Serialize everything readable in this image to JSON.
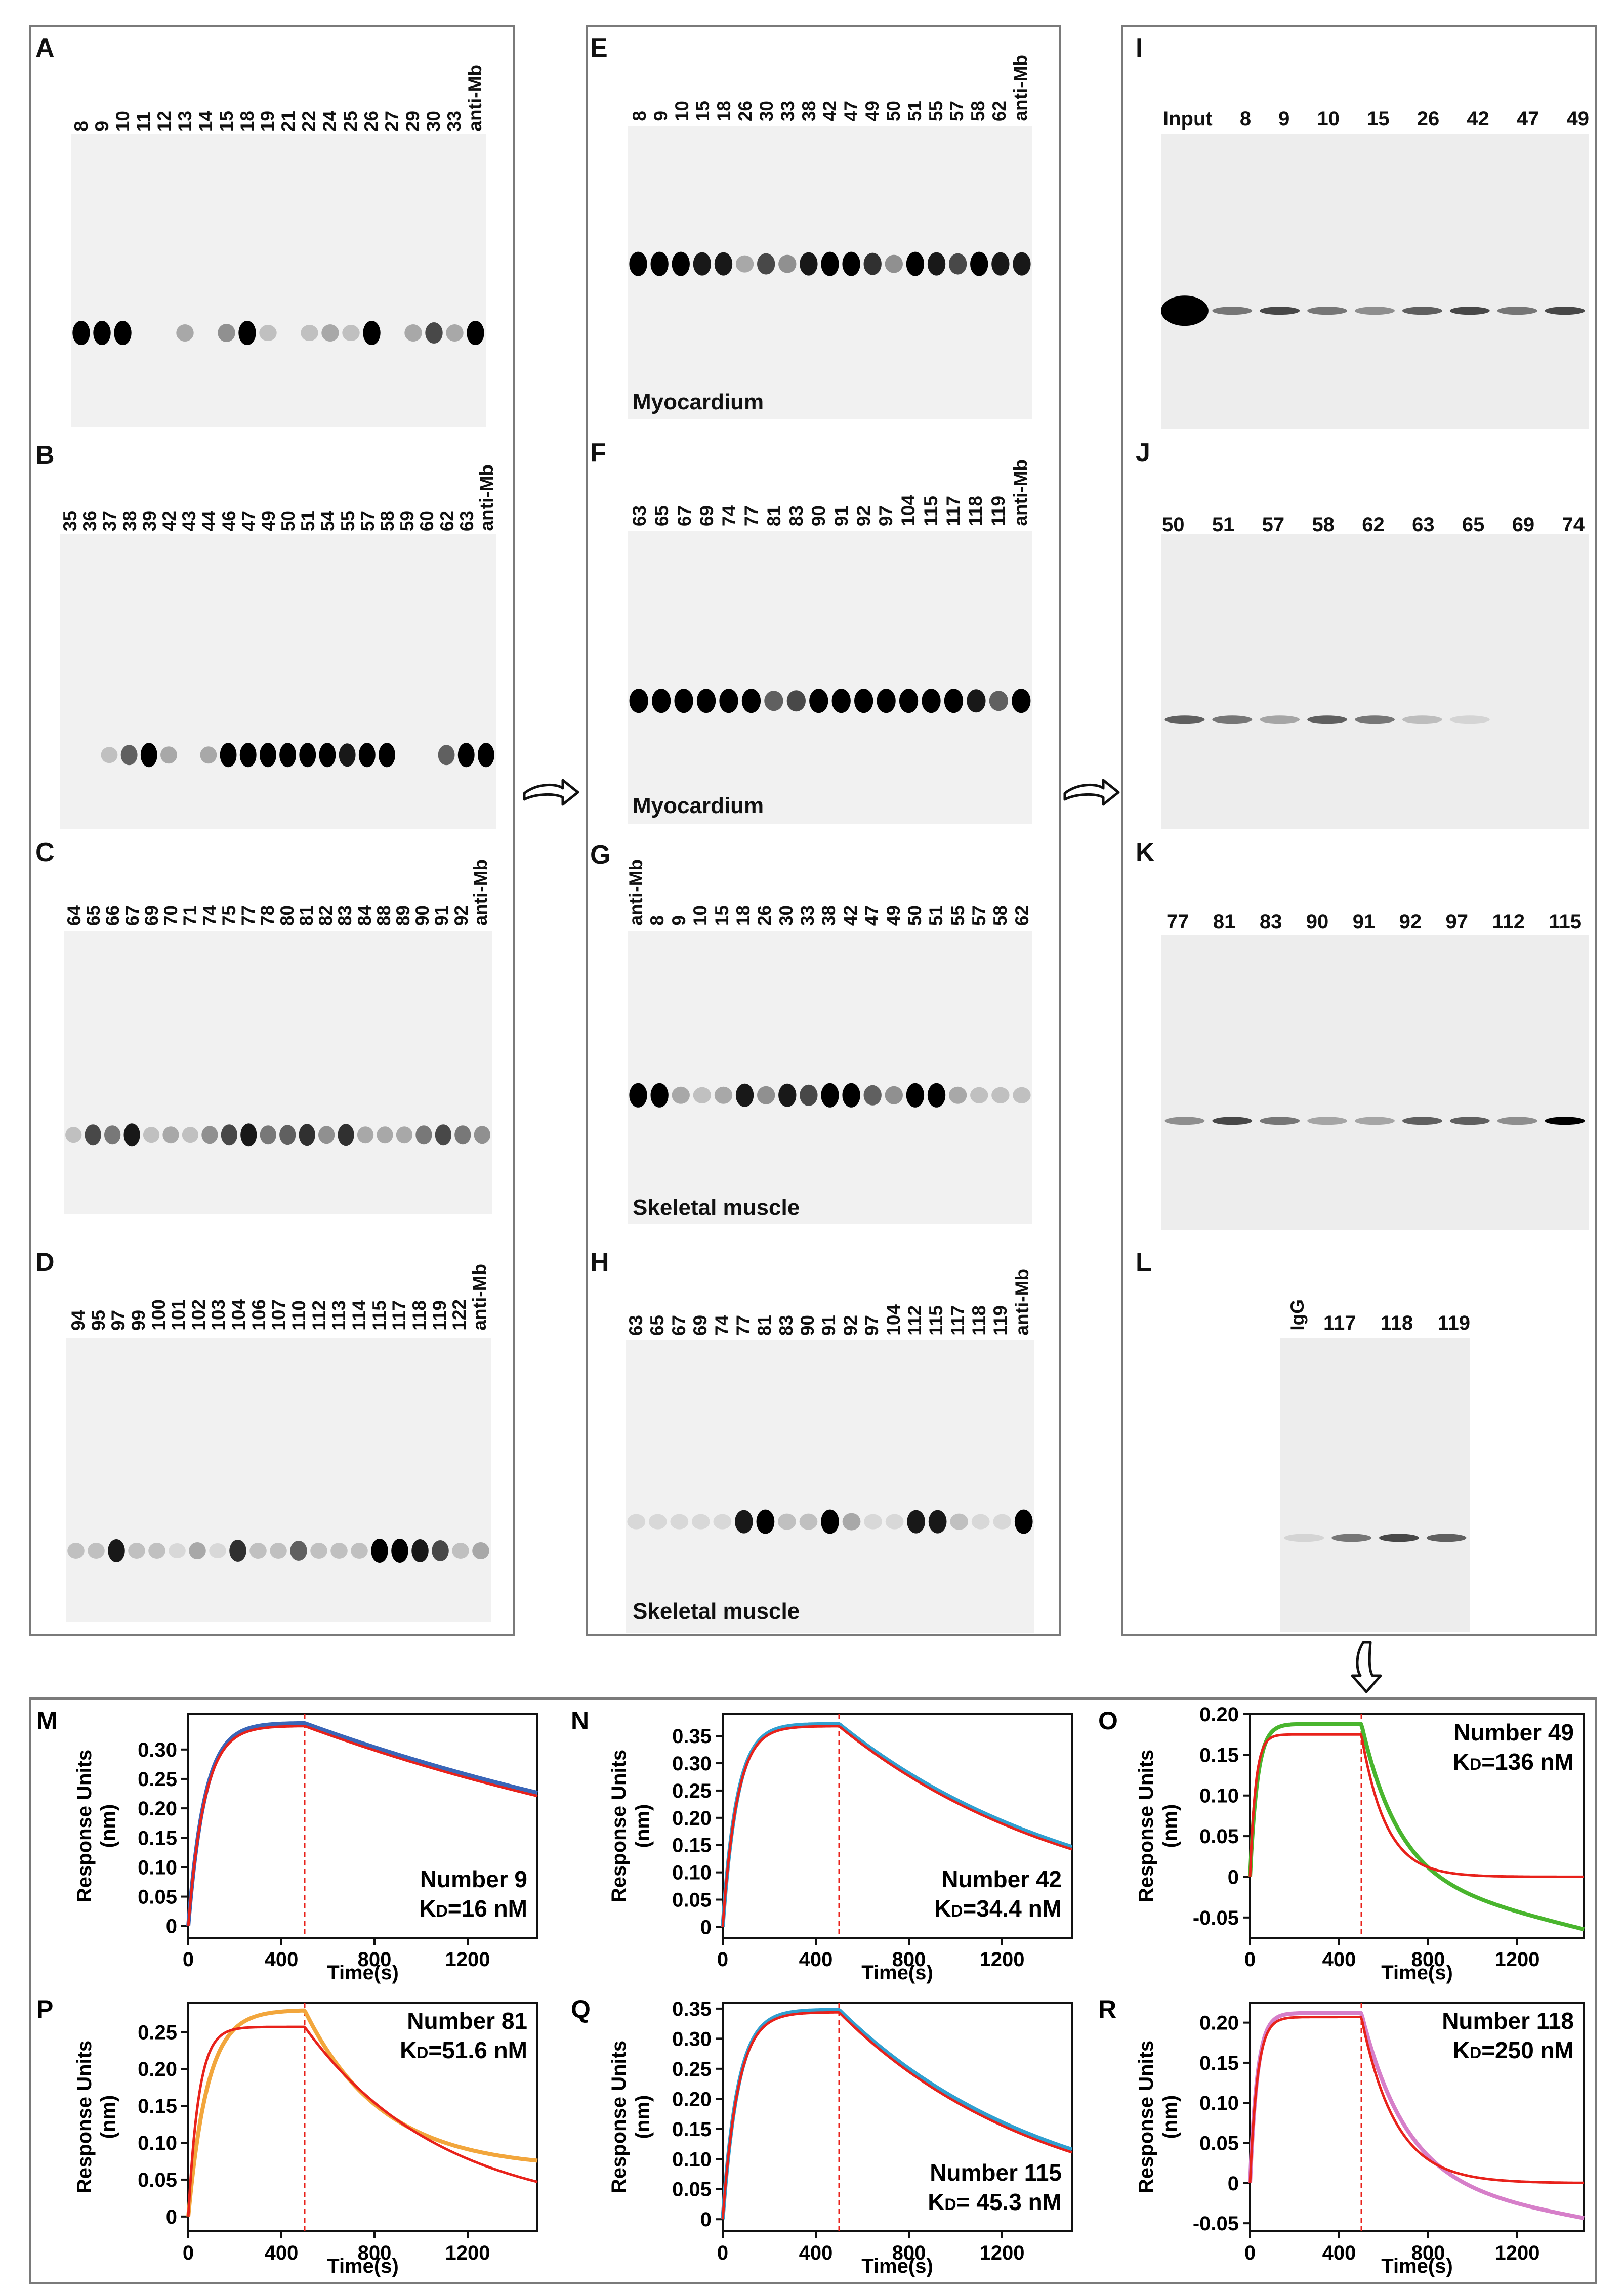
{
  "panels": {
    "A": {
      "label": "A",
      "lanes": [
        "8",
        "9",
        "10",
        "11",
        "12",
        "13",
        "14",
        "15",
        "18",
        "19",
        "21",
        "22",
        "24",
        "25",
        "26",
        "27",
        "29",
        "30",
        "33",
        "anti-Mb"
      ]
    },
    "B": {
      "label": "B",
      "lanes": [
        "35",
        "36",
        "37",
        "38",
        "39",
        "42",
        "43",
        "44",
        "46",
        "47",
        "49",
        "50",
        "51",
        "54",
        "55",
        "57",
        "58",
        "59",
        "60",
        "62",
        "63",
        "anti-Mb"
      ]
    },
    "C": {
      "label": "C",
      "lanes": [
        "64",
        "65",
        "66",
        "67",
        "69",
        "70",
        "71",
        "74",
        "75",
        "77",
        "78",
        "80",
        "81",
        "82",
        "83",
        "84",
        "88",
        "89",
        "90",
        "91",
        "92",
        "anti-Mb"
      ]
    },
    "D": {
      "label": "D",
      "lanes": [
        "94",
        "95",
        "97",
        "99",
        "100",
        "101",
        "102",
        "103",
        "104",
        "106",
        "107",
        "110",
        "112",
        "113",
        "114",
        "115",
        "117",
        "118",
        "119",
        "122",
        "anti-Mb"
      ]
    },
    "E": {
      "label": "E",
      "lanes": [
        "8",
        "9",
        "10",
        "15",
        "18",
        "26",
        "30",
        "33",
        "38",
        "42",
        "47",
        "49",
        "50",
        "51",
        "55",
        "57",
        "58",
        "62",
        "anti-Mb"
      ],
      "tissue": "Myocardium"
    },
    "F": {
      "label": "F",
      "lanes": [
        "63",
        "65",
        "67",
        "69",
        "74",
        "77",
        "81",
        "83",
        "90",
        "91",
        "92",
        "97",
        "104",
        "115",
        "117",
        "118",
        "119",
        "anti-Mb"
      ],
      "tissue": "Myocardium"
    },
    "G": {
      "label": "G",
      "lanes": [
        "anti-Mb",
        "8",
        "9",
        "10",
        "15",
        "18",
        "26",
        "30",
        "33",
        "38",
        "42",
        "47",
        "49",
        "50",
        "51",
        "55",
        "57",
        "58",
        "62"
      ],
      "tissue": "Skeletal muscle"
    },
    "H": {
      "label": "H",
      "lanes": [
        "63",
        "65",
        "67",
        "69",
        "74",
        "77",
        "81",
        "83",
        "90",
        "91",
        "92",
        "97",
        "104",
        "112",
        "115",
        "117",
        "118",
        "119",
        "anti-Mb"
      ],
      "tissue": "Skeletal muscle"
    },
    "I": {
      "label": "I",
      "lanes": [
        "Input",
        "8",
        "9",
        "10",
        "15",
        "26",
        "42",
        "47",
        "49"
      ]
    },
    "J": {
      "label": "J",
      "lanes": [
        "50",
        "51",
        "57",
        "58",
        "62",
        "63",
        "65",
        "69",
        "74"
      ]
    },
    "K": {
      "label": "K",
      "lanes": [
        "77",
        "81",
        "83",
        "90",
        "91",
        "92",
        "97",
        "112",
        "115"
      ]
    },
    "L": {
      "label": "L",
      "rot_lane": "IgG",
      "lanes": [
        "117",
        "118",
        "119"
      ]
    }
  },
  "charts_text": {
    "ylabel_line1": "Response Units",
    "ylabel_line2": "(nm)",
    "xlabel": "Time(s)"
  },
  "chart_data": [
    {
      "id": "M",
      "type": "line",
      "label": "M",
      "title": "Number 9",
      "kd": "KD=16 nM",
      "kd_prefix": "K",
      "kd_sub": "D",
      "kd_value": "=16 nM",
      "xlim": [
        0,
        1500
      ],
      "ylim": [
        -0.02,
        0.36
      ],
      "xticks": [
        0,
        400,
        800,
        1200
      ],
      "yticks": [
        0,
        0.05,
        0.1,
        0.15,
        0.2,
        0.25,
        0.3
      ],
      "ytick_labels": [
        "0",
        "0.05",
        "0.10",
        "0.15",
        "0.20",
        "0.25",
        "0.30"
      ],
      "dissociation_start": 500,
      "series": [
        {
          "name": "data",
          "color": "#3a66b8",
          "assoc_max": 0.345,
          "kon": 0.014,
          "koff": 0.00042
        },
        {
          "name": "fit",
          "color": "#e8221b",
          "assoc_max": 0.34,
          "kon": 0.014,
          "koff": 0.00043
        }
      ]
    },
    {
      "id": "N",
      "type": "line",
      "label": "N",
      "title": "Number 42",
      "kd": "KD=34.4 nM",
      "kd_prefix": "K",
      "kd_sub": "D",
      "kd_value": "=34.4 nM",
      "xlim": [
        0,
        1500
      ],
      "ylim": [
        -0.02,
        0.39
      ],
      "xticks": [
        0,
        400,
        800,
        1200
      ],
      "yticks": [
        0,
        0.05,
        0.1,
        0.15,
        0.2,
        0.25,
        0.3,
        0.35
      ],
      "ytick_labels": [
        "0",
        "0.05",
        "0.10",
        "0.15",
        "0.20",
        "0.25",
        "0.30",
        "0.35"
      ],
      "dissociation_start": 500,
      "series": [
        {
          "name": "data",
          "color": "#2f9fd0",
          "assoc_max": 0.372,
          "kon": 0.016,
          "koff": 0.00093
        },
        {
          "name": "fit",
          "color": "#e8221b",
          "assoc_max": 0.368,
          "kon": 0.016,
          "koff": 0.00095
        }
      ]
    },
    {
      "id": "O",
      "type": "line",
      "label": "O",
      "title": "Number 49",
      "kd": "KD=136 nM",
      "kd_prefix": "K",
      "kd_sub": "D",
      "kd_value": "=136 nM",
      "xlim": [
        0,
        1500
      ],
      "ylim": [
        -0.075,
        0.2
      ],
      "xticks": [
        0,
        400,
        800,
        1200
      ],
      "yticks": [
        -0.05,
        0,
        0.05,
        0.1,
        0.15,
        0.2
      ],
      "ytick_labels": [
        "-0.05",
        "0",
        "0.05",
        "0.10",
        "0.15",
        "0.20"
      ],
      "dissociation_start": 500,
      "series": [
        {
          "name": "data",
          "color": "#49b52e",
          "assoc_max": 0.188,
          "kon": 0.03,
          "koff": 0.006,
          "drift": -0.065
        },
        {
          "name": "fit",
          "color": "#e8221b",
          "assoc_max": 0.175,
          "kon": 0.04,
          "koff": 0.009
        }
      ]
    },
    {
      "id": "P",
      "type": "line",
      "label": "P",
      "title": "Number 81",
      "kd": "KD=51.6 nM",
      "kd_prefix": "K",
      "kd_sub": "D",
      "kd_value": "=51.6 nM",
      "xlim": [
        0,
        1500
      ],
      "ylim": [
        -0.02,
        0.29
      ],
      "xticks": [
        0,
        400,
        800,
        1200
      ],
      "yticks": [
        0,
        0.05,
        0.1,
        0.15,
        0.2,
        0.25
      ],
      "ytick_labels": [
        "0",
        "0.05",
        "0.10",
        "0.15",
        "0.20",
        "0.25"
      ],
      "dissociation_start": 500,
      "series": [
        {
          "name": "data",
          "color": "#f2a63c",
          "assoc_max": 0.28,
          "kon": 0.012,
          "koff": 0.003,
          "floor": 0.065
        },
        {
          "name": "fit",
          "color": "#e8221b",
          "assoc_max": 0.257,
          "kon": 0.022,
          "koff": 0.0017
        }
      ]
    },
    {
      "id": "Q",
      "type": "line",
      "label": "Q",
      "title": "Number 115",
      "kd": "KD= 45.3 nM",
      "kd_prefix": "K",
      "kd_sub": "D",
      "kd_value": "= 45.3 nM",
      "xlim": [
        0,
        1500
      ],
      "ylim": [
        -0.02,
        0.36
      ],
      "xticks": [
        0,
        400,
        800,
        1200
      ],
      "yticks": [
        0,
        0.05,
        0.1,
        0.15,
        0.2,
        0.25,
        0.3,
        0.35
      ],
      "ytick_labels": [
        "0",
        "0.05",
        "0.10",
        "0.15",
        "0.20",
        "0.25",
        "0.30",
        "0.35"
      ],
      "dissociation_start": 500,
      "series": [
        {
          "name": "data",
          "color": "#2f9fd0",
          "assoc_max": 0.348,
          "kon": 0.015,
          "koff": 0.0011
        },
        {
          "name": "fit",
          "color": "#e8221b",
          "assoc_max": 0.344,
          "kon": 0.015,
          "koff": 0.00113
        }
      ]
    },
    {
      "id": "R",
      "type": "line",
      "label": "R",
      "title": "Number 118",
      "kd": "KD=250 nM",
      "kd_prefix": "K",
      "kd_sub": "D",
      "kd_value": "=250 nM",
      "xlim": [
        0,
        1500
      ],
      "ylim": [
        -0.06,
        0.225
      ],
      "xticks": [
        0,
        400,
        800,
        1200
      ],
      "yticks": [
        -0.05,
        0,
        0.05,
        0.1,
        0.15,
        0.2
      ],
      "ytick_labels": [
        "-0.05",
        "0",
        "0.05",
        "0.10",
        "0.15",
        "0.20"
      ],
      "dissociation_start": 500,
      "series": [
        {
          "name": "data",
          "color": "#d67fc9",
          "assoc_max": 0.212,
          "kon": 0.03,
          "koff": 0.005,
          "drift": -0.045
        },
        {
          "name": "fit",
          "color": "#e8221b",
          "assoc_max": 0.207,
          "kon": 0.03,
          "koff": 0.0065
        }
      ]
    }
  ]
}
